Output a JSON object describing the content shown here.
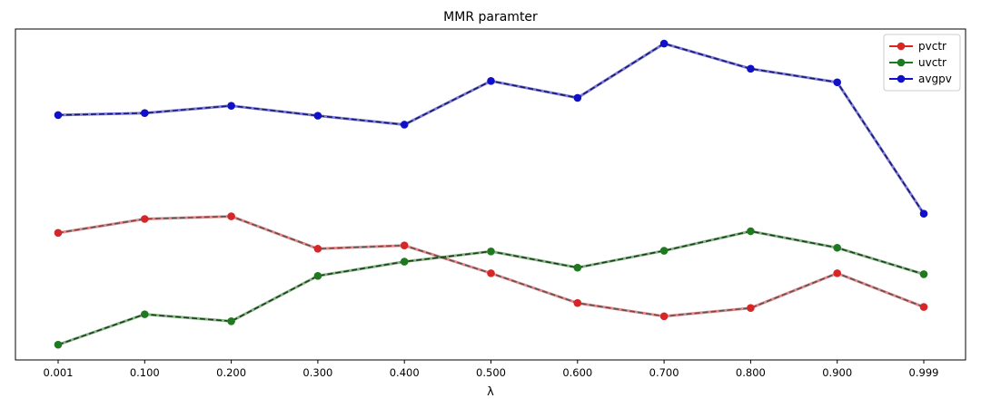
{
  "chart_data": {
    "type": "line",
    "title": "MMR paramter",
    "xlabel": "λ",
    "ylabel": "",
    "x": [
      "0.001",
      "0.100",
      "0.200",
      "0.300",
      "0.400",
      "0.500",
      "0.600",
      "0.700",
      "0.800",
      "0.900",
      "0.999"
    ],
    "ylim": [
      0,
      100
    ],
    "y_ticks_visible": false,
    "grid": false,
    "legend_position": "top-right",
    "line_style": "dashed",
    "marker": "circle",
    "series": [
      {
        "name": "pvctr",
        "color": "#d62728",
        "dash_color": "#555555",
        "values": [
          38.4,
          42.6,
          43.4,
          33.6,
          34.6,
          26.2,
          17.2,
          13.2,
          15.7,
          26.2,
          16.0
        ]
      },
      {
        "name": "uvctr",
        "color": "#1f7a1f",
        "dash_color": "#1f3a1f",
        "values": [
          4.6,
          13.8,
          11.7,
          25.4,
          29.7,
          32.8,
          27.9,
          33.0,
          38.9,
          33.9,
          25.9
        ]
      },
      {
        "name": "avgpv",
        "color": "#1010c8",
        "dash_color": "#1a1a60",
        "values": [
          74.0,
          74.6,
          76.8,
          73.8,
          71.1,
          84.3,
          79.2,
          95.6,
          88.0,
          83.9,
          44.2
        ]
      }
    ]
  }
}
